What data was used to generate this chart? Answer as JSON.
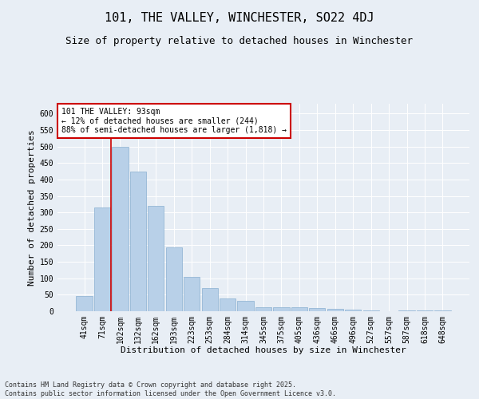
{
  "title": "101, THE VALLEY, WINCHESTER, SO22 4DJ",
  "subtitle": "Size of property relative to detached houses in Winchester",
  "xlabel": "Distribution of detached houses by size in Winchester",
  "ylabel": "Number of detached properties",
  "categories": [
    "41sqm",
    "71sqm",
    "102sqm",
    "132sqm",
    "162sqm",
    "193sqm",
    "223sqm",
    "253sqm",
    "284sqm",
    "314sqm",
    "345sqm",
    "375sqm",
    "405sqm",
    "436sqm",
    "466sqm",
    "496sqm",
    "527sqm",
    "557sqm",
    "587sqm",
    "618sqm",
    "648sqm"
  ],
  "values": [
    47,
    315,
    500,
    425,
    320,
    195,
    105,
    70,
    38,
    32,
    13,
    12,
    13,
    10,
    8,
    5,
    2,
    1,
    3,
    3,
    3
  ],
  "bar_color": "#b8d0e8",
  "bar_edge_color": "#8ab0d0",
  "vline_color": "#cc0000",
  "vline_x_index": 1.5,
  "annotation_box_text": "101 THE VALLEY: 93sqm\n← 12% of detached houses are smaller (244)\n88% of semi-detached houses are larger (1,818) →",
  "annotation_box_color": "#cc0000",
  "annotation_box_facecolor": "#ffffff",
  "ylim": [
    0,
    630
  ],
  "yticks": [
    0,
    50,
    100,
    150,
    200,
    250,
    300,
    350,
    400,
    450,
    500,
    550,
    600
  ],
  "bg_color": "#e8eef5",
  "plot_bg_color": "#e8eef5",
  "footer_text": "Contains HM Land Registry data © Crown copyright and database right 2025.\nContains public sector information licensed under the Open Government Licence v3.0.",
  "title_fontsize": 11,
  "subtitle_fontsize": 9,
  "axis_label_fontsize": 8,
  "tick_fontsize": 7,
  "annotation_fontsize": 7,
  "footer_fontsize": 6
}
